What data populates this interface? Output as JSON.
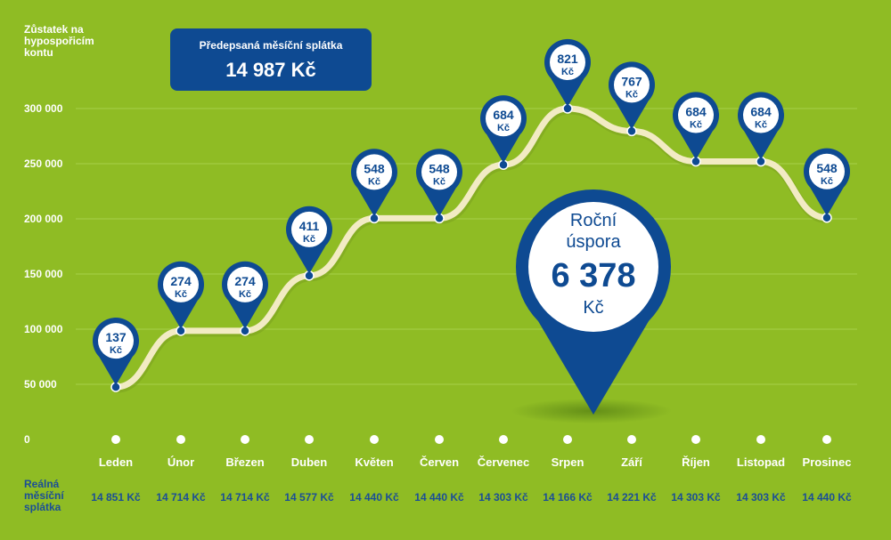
{
  "header": {
    "title": "Předepsaná měsíční splátka",
    "value": "14 987 Kč"
  },
  "y_axis_label": "Zůstatek na hypospořicím kontu",
  "row_label": "Reálná měsíční splátka",
  "savings": {
    "title": "Roční úspora",
    "value": "6 378",
    "unit": "Kč"
  },
  "colors": {
    "background": "#8fbc24",
    "accent_blue": "#0e4a92",
    "line": "#f2ebc4",
    "white": "#ffffff"
  },
  "chart_data": {
    "type": "line",
    "title": "",
    "xlabel": "",
    "ylabel": "Zůstatek na hypospořicím kontu",
    "ylim": [
      0,
      300000
    ],
    "yticks": [
      0,
      50000,
      100000,
      150000,
      200000,
      250000,
      300000
    ],
    "ytick_labels": [
      "0",
      "50 000",
      "100 000",
      "150 000",
      "200 000",
      "250 000",
      "300 000"
    ],
    "grid": true,
    "categories": [
      "Leden",
      "Únor",
      "Březen",
      "Duben",
      "Květen",
      "Červen",
      "Červenec",
      "Srpen",
      "Září",
      "Říjen",
      "Listopad",
      "Prosinec"
    ],
    "values": [
      47500,
      98500,
      98500,
      148500,
      200500,
      200500,
      249000,
      300000,
      279500,
      252000,
      252000,
      201000
    ],
    "savings_per_month": [
      "137",
      "274",
      "274",
      "411",
      "548",
      "548",
      "684",
      "821",
      "767",
      "684",
      "684",
      "548"
    ],
    "savings_unit": "Kč",
    "payments": [
      "14 851 Kč",
      "14 714 Kč",
      "14 714 Kč",
      "14 577 Kč",
      "14 440 Kč",
      "14 440 Kč",
      "14 303 Kč",
      "14 166 Kč",
      "14 221 Kč",
      "14 303 Kč",
      "14 303 Kč",
      "14 440 Kč"
    ]
  }
}
